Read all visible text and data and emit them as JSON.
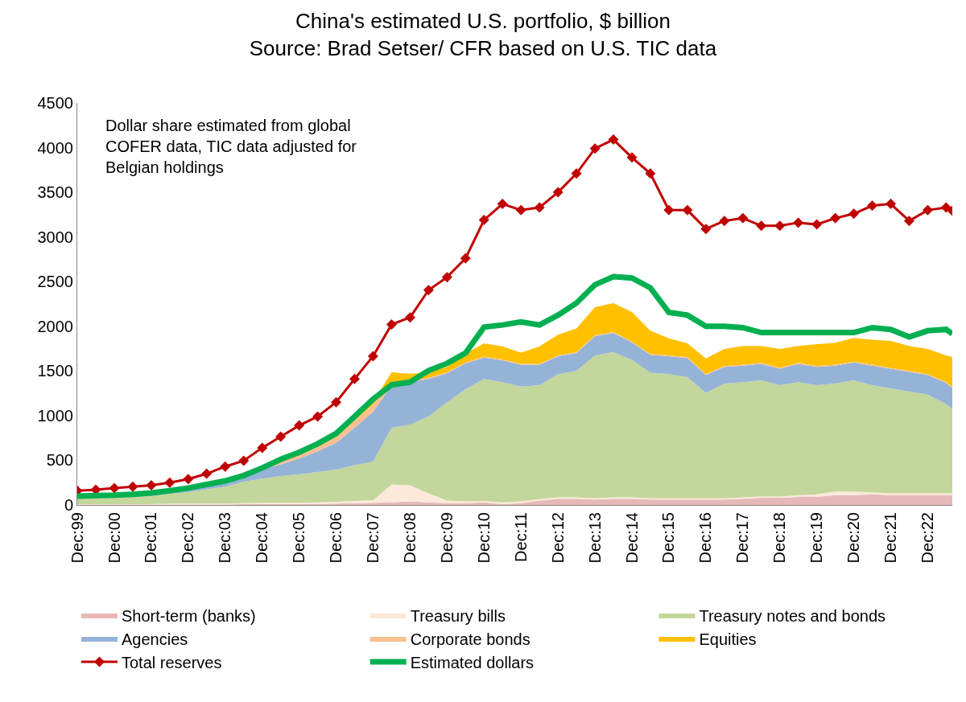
{
  "chart_data": {
    "type": "area",
    "stacked": true,
    "title": "China's estimated U.S. portfolio, $ billion",
    "subtitle": "Source: Brad Setser/ CFR based on U.S. TIC data",
    "annotations": [
      "Dollar share estimated from global COFER data, TIC data adjusted for Belgian holdings"
    ],
    "x": [
      "1999-12",
      "2000-06",
      "2000-12",
      "2001-06",
      "2001-12",
      "2002-06",
      "2002-12",
      "2003-06",
      "2003-12",
      "2004-06",
      "2004-12",
      "2005-06",
      "2005-12",
      "2006-06",
      "2006-12",
      "2007-06",
      "2007-12",
      "2008-06",
      "2008-12",
      "2009-06",
      "2009-12",
      "2010-06",
      "2010-12",
      "2011-06",
      "2011-12",
      "2012-06",
      "2012-12",
      "2013-06",
      "2013-12",
      "2014-06",
      "2014-12",
      "2015-06",
      "2015-12",
      "2016-06",
      "2016-12",
      "2017-06",
      "2017-12",
      "2018-06",
      "2018-12",
      "2019-06",
      "2019-12",
      "2020-06",
      "2020-12",
      "2021-06",
      "2021-12",
      "2022-06",
      "2022-12",
      "2023-06",
      "2023-08"
    ],
    "series": [
      {
        "name": "Short-term (banks)",
        "color": "#e6b9b8",
        "values": [
          5,
          5,
          5,
          5,
          5,
          5,
          5,
          5,
          5,
          10,
          10,
          10,
          10,
          10,
          15,
          20,
          25,
          30,
          40,
          30,
          20,
          20,
          30,
          10,
          20,
          50,
          70,
          70,
          60,
          70,
          70,
          60,
          60,
          60,
          60,
          60,
          70,
          80,
          80,
          90,
          90,
          110,
          110,
          120,
          110,
          110,
          110,
          110,
          110
        ]
      },
      {
        "name": "Treasury bills",
        "color": "#fde9d9",
        "values": [
          5,
          5,
          5,
          5,
          5,
          10,
          10,
          10,
          10,
          10,
          15,
          15,
          15,
          20,
          20,
          25,
          30,
          200,
          180,
          100,
          30,
          20,
          15,
          20,
          20,
          15,
          15,
          15,
          15,
          15,
          15,
          15,
          15,
          15,
          15,
          15,
          15,
          15,
          15,
          20,
          30,
          40,
          40,
          20,
          20,
          20,
          20,
          20,
          20
        ]
      },
      {
        "name": "Treasury notes and bonds",
        "color": "#c3d69b",
        "values": [
          60,
          65,
          70,
          80,
          90,
          110,
          130,
          160,
          190,
          240,
          270,
          300,
          320,
          340,
          360,
          400,
          430,
          635,
          680,
          860,
          1100,
          1255,
          1365,
          1345,
          1285,
          1275,
          1380,
          1415,
          1600,
          1625,
          1540,
          1405,
          1390,
          1355,
          1180,
          1285,
          1290,
          1300,
          1245,
          1265,
          1220,
          1210,
          1245,
          1200,
          1175,
          1140,
          1105,
          1000,
          945
        ]
      },
      {
        "name": "Agencies",
        "color": "#95b3d7",
        "values": [
          20,
          22,
          25,
          30,
          35,
          40,
          45,
          55,
          65,
          80,
          100,
          130,
          175,
          230,
          300,
          420,
          560,
          470,
          475,
          420,
          325,
          290,
          240,
          245,
          245,
          230,
          200,
          200,
          215,
          215,
          195,
          200,
          200,
          215,
          200,
          185,
          185,
          185,
          185,
          205,
          205,
          200,
          200,
          220,
          220,
          220,
          220,
          235,
          235
        ]
      },
      {
        "name": "Corporate bonds",
        "color": "#fac090",
        "values": [
          5,
          5,
          5,
          8,
          10,
          12,
          15,
          18,
          20,
          25,
          30,
          40,
          50,
          60,
          70,
          80,
          80,
          20,
          15,
          15,
          10,
          10,
          10,
          10,
          10,
          10,
          10,
          10,
          10,
          10,
          10,
          10,
          10,
          10,
          10,
          10,
          10,
          10,
          10,
          10,
          10,
          10,
          10,
          10,
          10,
          10,
          10,
          10,
          10
        ]
      },
      {
        "name": "Equities",
        "color": "#ffc000",
        "values": [
          0,
          0,
          0,
          0,
          0,
          0,
          0,
          0,
          0,
          0,
          5,
          5,
          5,
          10,
          10,
          20,
          30,
          130,
          80,
          60,
          60,
          100,
          150,
          145,
          125,
          195,
          230,
          265,
          315,
          325,
          330,
          260,
          190,
          155,
          175,
          190,
          210,
          190,
          210,
          190,
          245,
          245,
          265,
          280,
          300,
          280,
          280,
          300,
          335
        ]
      },
      {
        "name": "Total reserves",
        "type": "line",
        "color": "#c00000",
        "marker": "diamond",
        "values": [
          160,
          170,
          190,
          205,
          220,
          250,
          290,
          350,
          430,
          495,
          640,
          765,
          890,
          990,
          1150,
          1410,
          1665,
          2020,
          2100,
          2405,
          2550,
          2760,
          3190,
          3370,
          3300,
          3330,
          3500,
          3710,
          3990,
          4090,
          3890,
          3710,
          3300,
          3300,
          3090,
          3180,
          3210,
          3125,
          3125,
          3160,
          3140,
          3210,
          3260,
          3350,
          3370,
          3180,
          3300,
          3330,
          3295
        ]
      },
      {
        "name": "Estimated dollars",
        "type": "line",
        "color": "#00b050",
        "marker": "none",
        "values": [
          100,
          105,
          110,
          120,
          135,
          160,
          190,
          230,
          270,
          330,
          415,
          510,
          590,
          685,
          800,
          990,
          1185,
          1345,
          1375,
          1505,
          1585,
          1700,
          1990,
          2015,
          2050,
          2015,
          2125,
          2260,
          2465,
          2555,
          2540,
          2430,
          2155,
          2125,
          2000,
          2000,
          1985,
          1930,
          1930,
          1930,
          1930,
          1930,
          1930,
          1985,
          1965,
          1880,
          1950,
          1965,
          1915
        ]
      }
    ],
    "xlim": [
      "1999-12",
      "2023-08"
    ],
    "xticks": [
      {
        "value": "1999-12",
        "label": "Dec:99"
      },
      {
        "value": "2000-12",
        "label": "Dec:00"
      },
      {
        "value": "2001-12",
        "label": "Dec:01"
      },
      {
        "value": "2002-12",
        "label": "Dec:02"
      },
      {
        "value": "2003-12",
        "label": "Dec:03"
      },
      {
        "value": "2004-12",
        "label": "Dec:04"
      },
      {
        "value": "2005-12",
        "label": "Dec:05"
      },
      {
        "value": "2006-12",
        "label": "Dec:06"
      },
      {
        "value": "2007-12",
        "label": "Dec:07"
      },
      {
        "value": "2008-12",
        "label": "Dec:08"
      },
      {
        "value": "2009-12",
        "label": "Dec:09"
      },
      {
        "value": "2010-12",
        "label": "Dec:10"
      },
      {
        "value": "2011-12",
        "label": "Dec:11"
      },
      {
        "value": "2012-12",
        "label": "Dec:12"
      },
      {
        "value": "2013-12",
        "label": "Dec:13"
      },
      {
        "value": "2014-12",
        "label": "Dec:14"
      },
      {
        "value": "2015-12",
        "label": "Dec:15"
      },
      {
        "value": "2016-12",
        "label": "Dec:16"
      },
      {
        "value": "2017-12",
        "label": "Dec:17"
      },
      {
        "value": "2018-12",
        "label": "Dec:18"
      },
      {
        "value": "2019-12",
        "label": "Dec:19"
      },
      {
        "value": "2020-12",
        "label": "Dec:20"
      },
      {
        "value": "2021-12",
        "label": "Dec:21"
      },
      {
        "value": "2022-12",
        "label": "Dec:22"
      }
    ],
    "ylim": [
      0,
      4500
    ],
    "yticks": [
      0,
      500,
      1000,
      1500,
      2000,
      2500,
      3000,
      3500,
      4000,
      4500
    ],
    "grid": false,
    "legend": "bottom"
  }
}
